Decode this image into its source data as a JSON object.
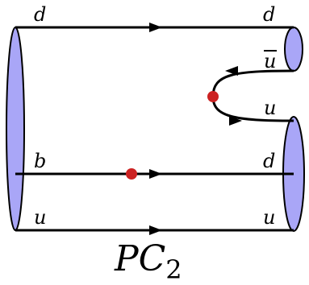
{
  "diagram": {
    "title": "PC",
    "title_subscript": "2",
    "labels": {
      "top_left": "d",
      "top_right": "d",
      "antiquark_right": "u",
      "pair_right": "u",
      "middle_left": "b",
      "middle_right": "d",
      "bottom_left": "u",
      "bottom_right": "u"
    },
    "colors": {
      "meson_fill": "#a9a6f7",
      "vertex_fill": "#cc2222",
      "line": "#000000"
    }
  }
}
